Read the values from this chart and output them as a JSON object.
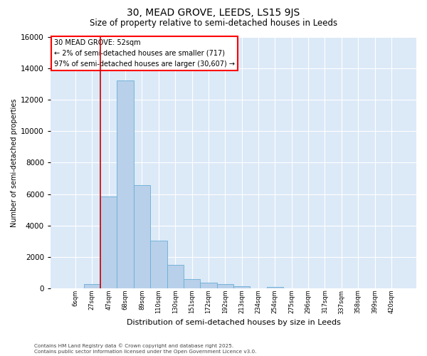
{
  "title": "30, MEAD GROVE, LEEDS, LS15 9JS",
  "subtitle": "Size of property relative to semi-detached houses in Leeds",
  "xlabel": "Distribution of semi-detached houses by size in Leeds",
  "ylabel": "Number of semi-detached properties",
  "footnote1": "Contains HM Land Registry data © Crown copyright and database right 2025.",
  "footnote2": "Contains public sector information licensed under the Open Government Licence v3.0.",
  "annotation_title": "30 MEAD GROVE: 52sqm",
  "annotation_line1": "← 2% of semi-detached houses are smaller (717)",
  "annotation_line2": "97% of semi-detached houses are larger (30,607) →",
  "bar_categories": [
    "6sqm",
    "27sqm",
    "47sqm",
    "68sqm",
    "89sqm",
    "110sqm",
    "130sqm",
    "151sqm",
    "172sqm",
    "192sqm",
    "213sqm",
    "234sqm",
    "254sqm",
    "275sqm",
    "296sqm",
    "317sqm",
    "337sqm",
    "358sqm",
    "399sqm",
    "420sqm"
  ],
  "bar_values": [
    0,
    300,
    5850,
    13200,
    6550,
    3050,
    1500,
    600,
    350,
    270,
    130,
    0,
    100,
    0,
    0,
    0,
    0,
    0,
    0,
    0
  ],
  "bar_color": "#b8d0ea",
  "bar_edgecolor": "#6aaed6",
  "vline_color": "#cc0000",
  "vline_x_index": 2,
  "ylim": [
    0,
    16000
  ],
  "yticks": [
    0,
    2000,
    4000,
    6000,
    8000,
    10000,
    12000,
    14000,
    16000
  ],
  "bg_color": "#dce9f7",
  "grid_color": "#ffffff",
  "title_fontsize": 10,
  "subtitle_fontsize": 8.5
}
